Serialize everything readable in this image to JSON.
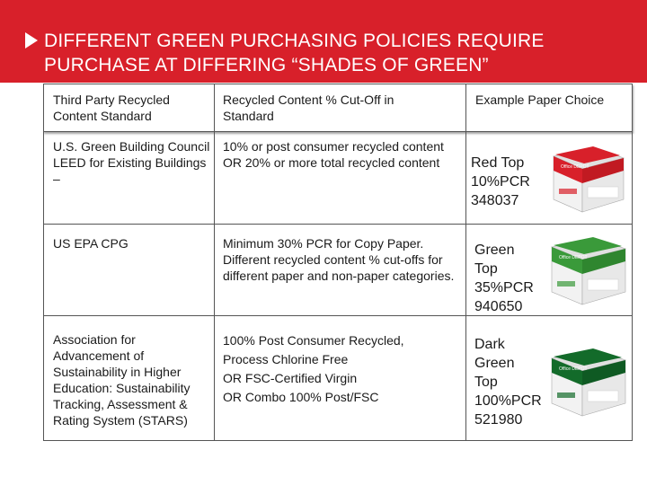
{
  "banner": {
    "title": "DIFFERENT GREEN PURCHASING POLICIES REQUIRE PURCHASE AT DIFFERING “SHADES OF GREEN”"
  },
  "table": {
    "headers": [
      "Third Party Recycled Content Standard",
      "Recycled Content % Cut-Off in Standard",
      "Example Paper Choice"
    ],
    "rows": [
      {
        "standard": "U.S. Green Building Council LEED for Existing Buildings –",
        "cutoff": "10% or post consumer recycled content OR 20% or more total recycled content",
        "paper": [
          "Red Top",
          "10%PCR",
          "348037"
        ],
        "box_color": "#d8202a",
        "box_brand": "Office DEPOT"
      },
      {
        "standard": "US EPA CPG",
        "cutoff": "Minimum 30% PCR for Copy Paper. Different recycled content % cut-offs for different paper and non-paper categories.",
        "paper": [
          "Green",
          "Top",
          "35%PCR",
          "940650"
        ],
        "box_color": "#3a9a3a",
        "box_brand": "Office DEPOT"
      },
      {
        "standard": "Association for Advancement of Sustainability in Higher Education: Sustainability Tracking, Assessment & Rating System (STARS)",
        "cutoff_lines": [
          "100% Post Consumer Recycled,",
          "Process Chlorine Free",
          "OR FSC-Certified Virgin",
          "OR Combo 100% Post/FSC"
        ],
        "paper": [
          "Dark",
          "Green",
          "Top",
          "100%PCR",
          "521980"
        ],
        "box_color": "#136b2a",
        "box_brand": "Office DEPOT"
      }
    ]
  }
}
